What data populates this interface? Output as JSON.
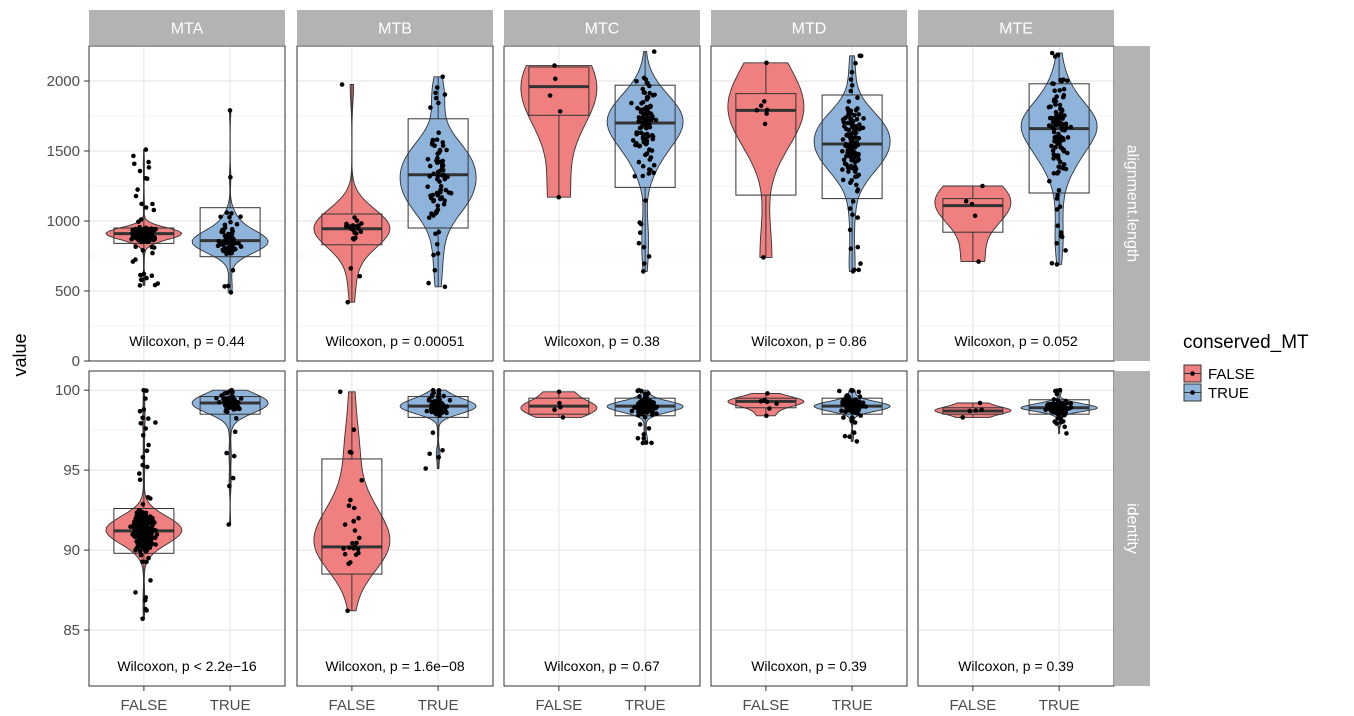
{
  "chart_data": {
    "type": "violin",
    "ylabel": "value",
    "xlabel": "",
    "categories": [
      "FALSE",
      "TRUE"
    ],
    "facet_columns": [
      "MTA",
      "MTB",
      "MTC",
      "MTD",
      "MTE"
    ],
    "facet_rows": [
      {
        "name": "alignment.length",
        "ylim": [
          0,
          2250
        ],
        "ticks": [
          0,
          500,
          1000,
          1500,
          2000
        ]
      },
      {
        "name": "identity",
        "ylim": [
          81.5,
          101.2
        ],
        "ticks": [
          85,
          90,
          95,
          100
        ]
      }
    ],
    "legend": {
      "title": "conserved_MT",
      "position": "right",
      "entries": [
        {
          "name": "FALSE",
          "color": "#F8766D"
        },
        {
          "name": "TRUE",
          "color": "#619CD2"
        }
      ]
    },
    "grid": true,
    "colors": {
      "FALSE": "#F08080",
      "TRUE": "#8FB4DC",
      "strip": "#B3B3B3"
    },
    "panels": [
      {
        "col": "MTA",
        "row": "alignment.length",
        "annotation": "Wilcoxon, p = 0.44",
        "groups": {
          "FALSE": {
            "min": 540,
            "q1": 840,
            "median": 910,
            "q3": 950,
            "max": 1510,
            "n": 300
          },
          "TRUE": {
            "min": 490,
            "q1": 745,
            "median": 860,
            "q3": 1095,
            "max": 1790,
            "n": 80
          }
        }
      },
      {
        "col": "MTB",
        "row": "alignment.length",
        "annotation": "Wilcoxon, p = 0.00051",
        "groups": {
          "FALSE": {
            "min": 420,
            "q1": 830,
            "median": 945,
            "q3": 1050,
            "max": 1975,
            "n": 25
          },
          "TRUE": {
            "min": 530,
            "q1": 950,
            "median": 1330,
            "q3": 1730,
            "max": 2030,
            "n": 80
          }
        }
      },
      {
        "col": "MTC",
        "row": "alignment.length",
        "annotation": "Wilcoxon, p = 0.38",
        "groups": {
          "FALSE": {
            "min": 1170,
            "q1": 1755,
            "median": 1960,
            "q3": 2100,
            "max": 2110,
            "n": 3
          },
          "TRUE": {
            "min": 640,
            "q1": 1240,
            "median": 1700,
            "q3": 1970,
            "max": 2210,
            "n": 110
          }
        }
      },
      {
        "col": "MTD",
        "row": "alignment.length",
        "annotation": "Wilcoxon, p = 0.86",
        "groups": {
          "FALSE": {
            "min": 740,
            "q1": 1185,
            "median": 1790,
            "q3": 1910,
            "max": 2130,
            "n": 6
          },
          "TRUE": {
            "min": 640,
            "q1": 1160,
            "median": 1550,
            "q3": 1900,
            "max": 2180,
            "n": 130
          }
        }
      },
      {
        "col": "MTE",
        "row": "alignment.length",
        "annotation": "Wilcoxon, p = 0.052",
        "groups": {
          "FALSE": {
            "min": 710,
            "q1": 920,
            "median": 1110,
            "q3": 1160,
            "max": 1250,
            "n": 3
          },
          "TRUE": {
            "min": 690,
            "q1": 1200,
            "median": 1660,
            "q3": 1980,
            "max": 2200,
            "n": 120
          }
        }
      },
      {
        "col": "MTA",
        "row": "identity",
        "annotation": "Wilcoxon, p < 2.2e−16",
        "groups": {
          "FALSE": {
            "min": 85.7,
            "q1": 89.8,
            "median": 91.2,
            "q3": 92.6,
            "max": 100,
            "n": 300
          },
          "TRUE": {
            "min": 91.6,
            "q1": 98.5,
            "median": 99.2,
            "q3": 99.6,
            "max": 100,
            "n": 80
          }
        }
      },
      {
        "col": "MTB",
        "row": "identity",
        "annotation": "Wilcoxon, p = 1.6e−08",
        "groups": {
          "FALSE": {
            "min": 86.2,
            "q1": 88.5,
            "median": 90.2,
            "q3": 95.7,
            "max": 99.9,
            "n": 25
          },
          "TRUE": {
            "min": 95.1,
            "q1": 98.3,
            "median": 99.0,
            "q3": 99.6,
            "max": 100,
            "n": 80
          }
        }
      },
      {
        "col": "MTC",
        "row": "identity",
        "annotation": "Wilcoxon, p = 0.67",
        "groups": {
          "FALSE": {
            "min": 98.3,
            "q1": 98.5,
            "median": 99.0,
            "q3": 99.5,
            "max": 99.9,
            "n": 3
          },
          "TRUE": {
            "min": 96.7,
            "q1": 98.4,
            "median": 99.0,
            "q3": 99.5,
            "max": 100,
            "n": 110
          }
        }
      },
      {
        "col": "MTD",
        "row": "identity",
        "annotation": "Wilcoxon, p = 0.39",
        "groups": {
          "FALSE": {
            "min": 98.4,
            "q1": 98.9,
            "median": 99.3,
            "q3": 99.5,
            "max": 99.8,
            "n": 6
          },
          "TRUE": {
            "min": 96.8,
            "q1": 98.5,
            "median": 99.0,
            "q3": 99.5,
            "max": 100,
            "n": 130
          }
        }
      },
      {
        "col": "MTE",
        "row": "identity",
        "annotation": "Wilcoxon, p = 0.39",
        "groups": {
          "FALSE": {
            "min": 98.3,
            "q1": 98.5,
            "median": 98.7,
            "q3": 98.9,
            "max": 99.2,
            "n": 3
          },
          "TRUE": {
            "min": 97.3,
            "q1": 98.5,
            "median": 98.9,
            "q3": 99.4,
            "max": 100,
            "n": 120
          }
        }
      }
    ]
  }
}
